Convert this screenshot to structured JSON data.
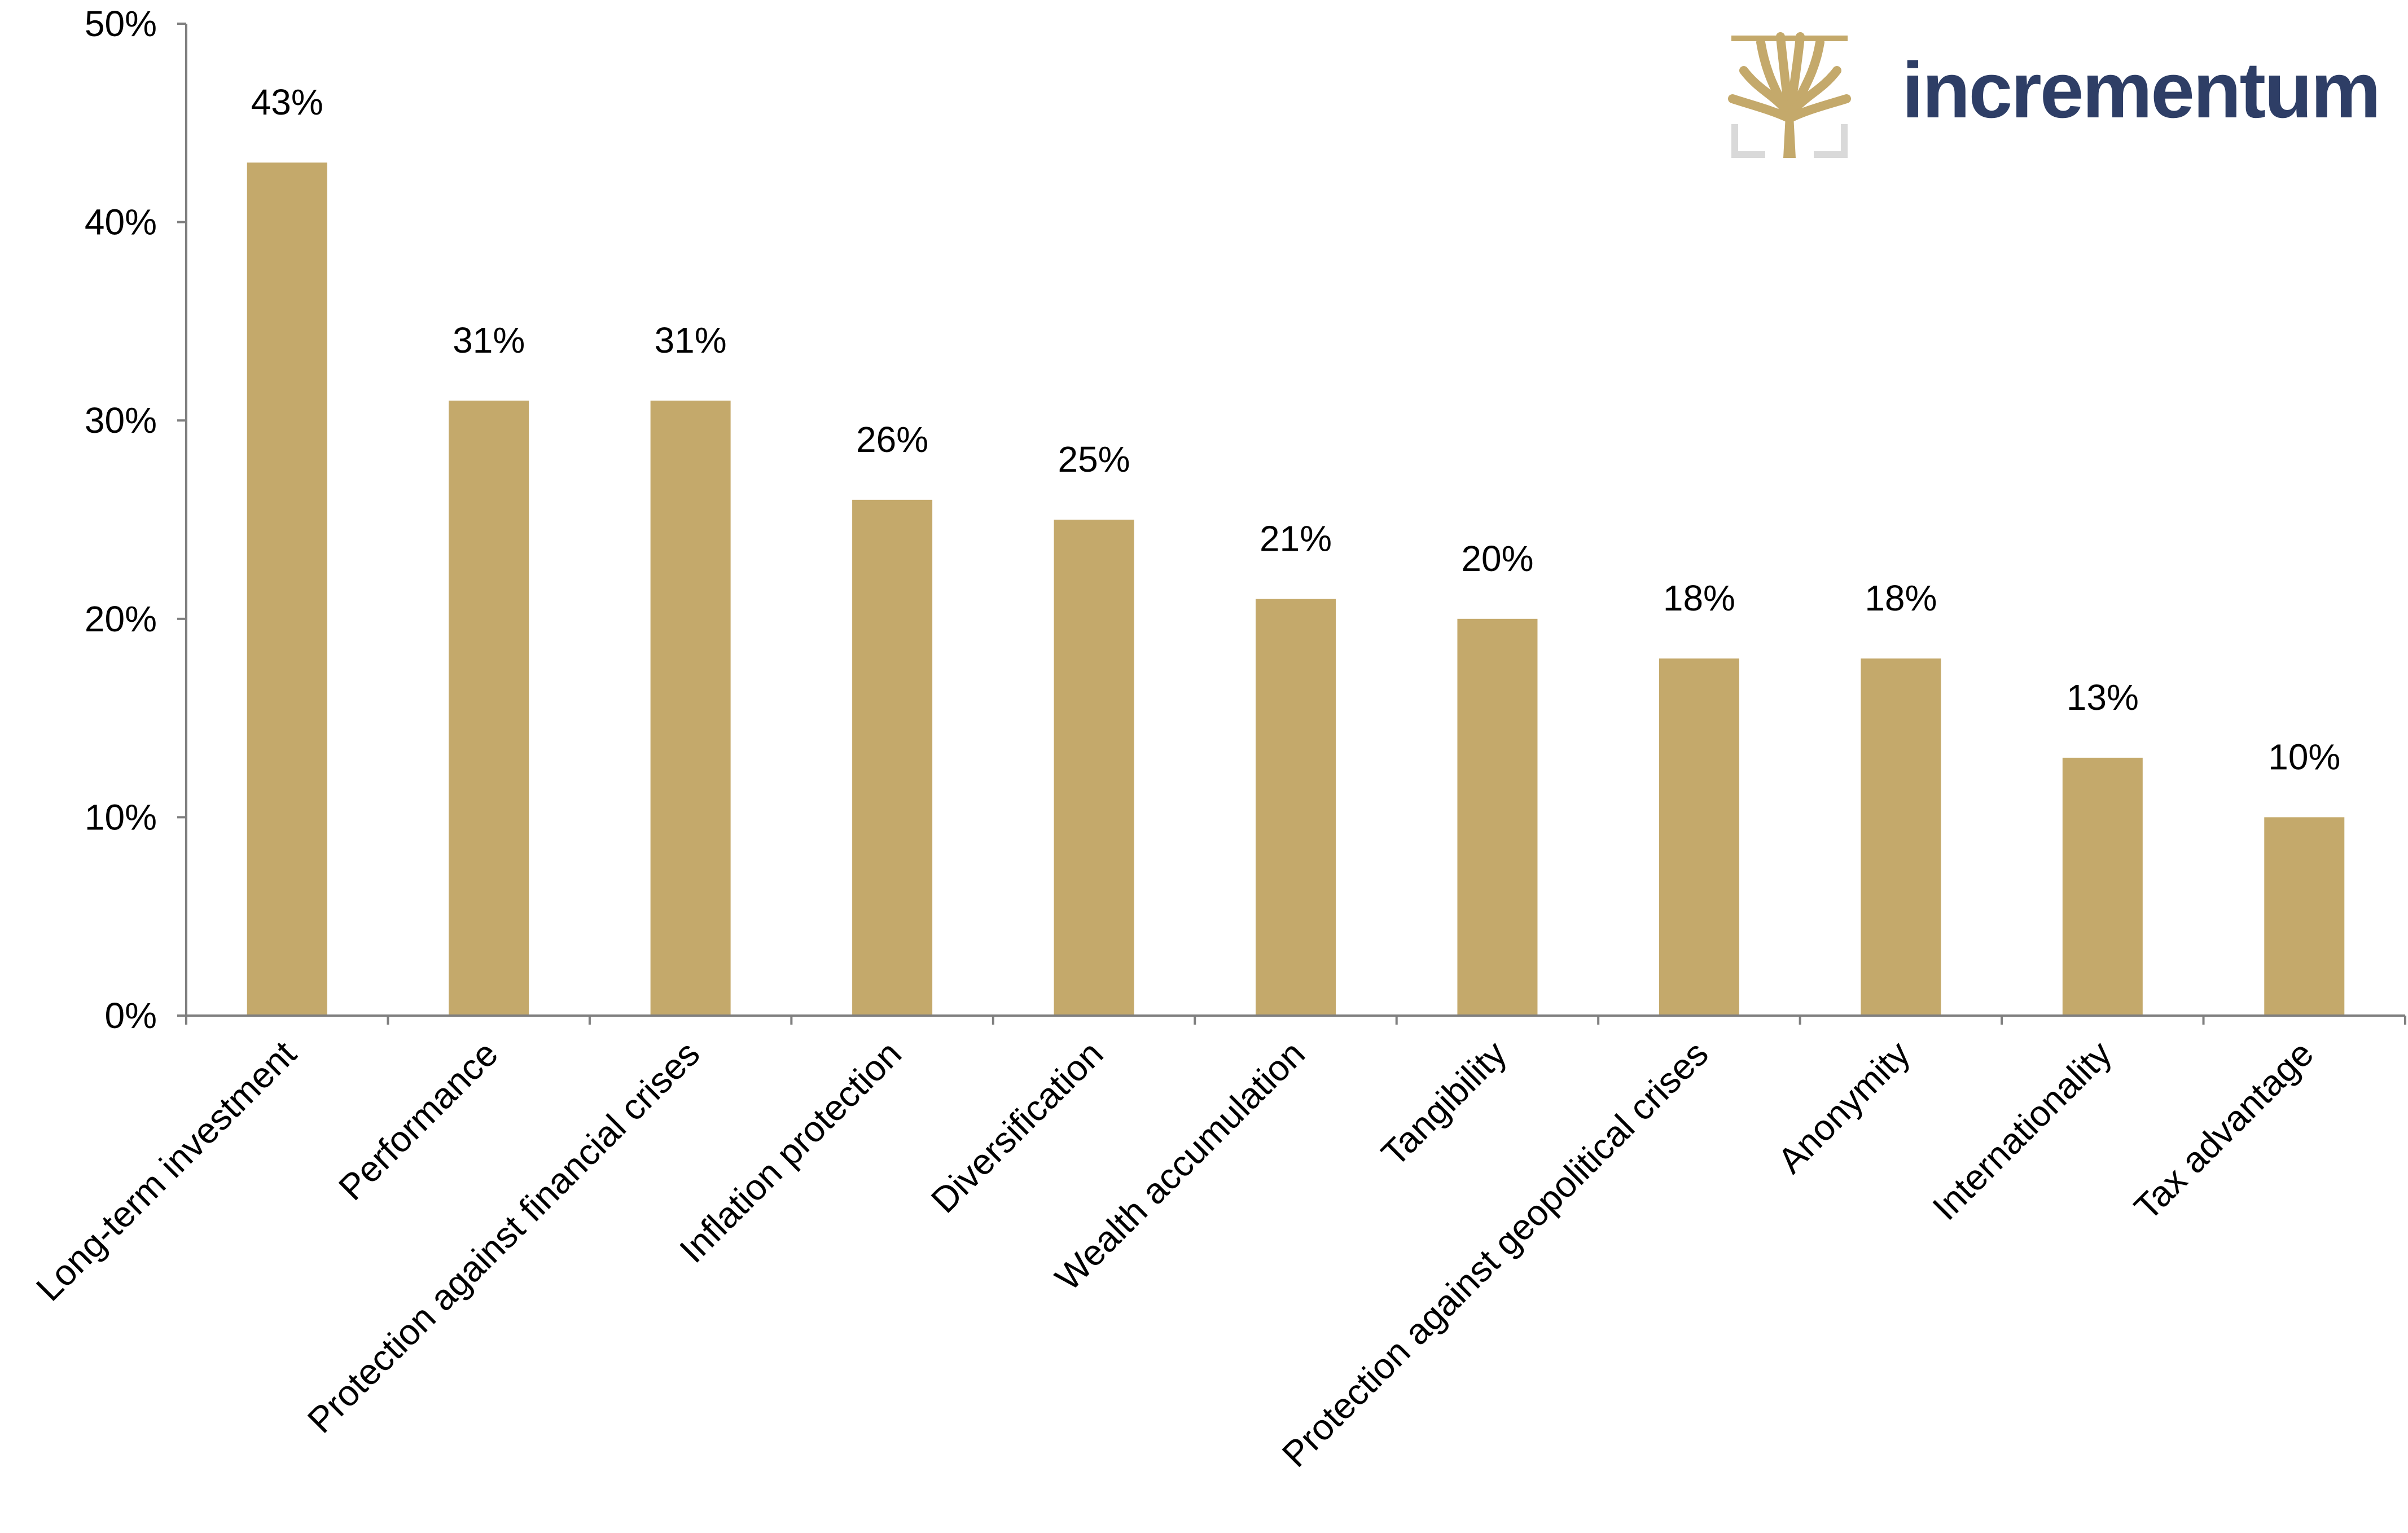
{
  "brand": {
    "name": "incrementum",
    "text_color": "#2e3e66",
    "mark_color": "#c4a96b",
    "mark_frame_color": "#d9d9d9",
    "mark_icon": "tree-icon"
  },
  "chart_data": {
    "type": "bar",
    "title": "",
    "xlabel": "",
    "ylabel": "",
    "categories": [
      "Long-term investment",
      "Performance",
      "Protection against financial crises",
      "Inflation protection",
      "Diversification",
      "Wealth accumulation",
      "Tangibility",
      "Protection against geopolitical crises",
      "Anonymity",
      "Internationality",
      "Tax advantage"
    ],
    "values": [
      43,
      31,
      31,
      26,
      25,
      21,
      20,
      18,
      18,
      13,
      10
    ],
    "value_labels": [
      "43%",
      "31%",
      "31%",
      "26%",
      "25%",
      "21%",
      "20%",
      "18%",
      "18%",
      "13%",
      "10%"
    ],
    "ylim": [
      0,
      50
    ],
    "yticks": [
      0,
      10,
      20,
      30,
      40,
      50
    ],
    "ytick_labels": [
      "0%",
      "10%",
      "20%",
      "30%",
      "40%",
      "50%"
    ],
    "grid": false,
    "legend": "none",
    "bar_color": "#c4a96b"
  }
}
